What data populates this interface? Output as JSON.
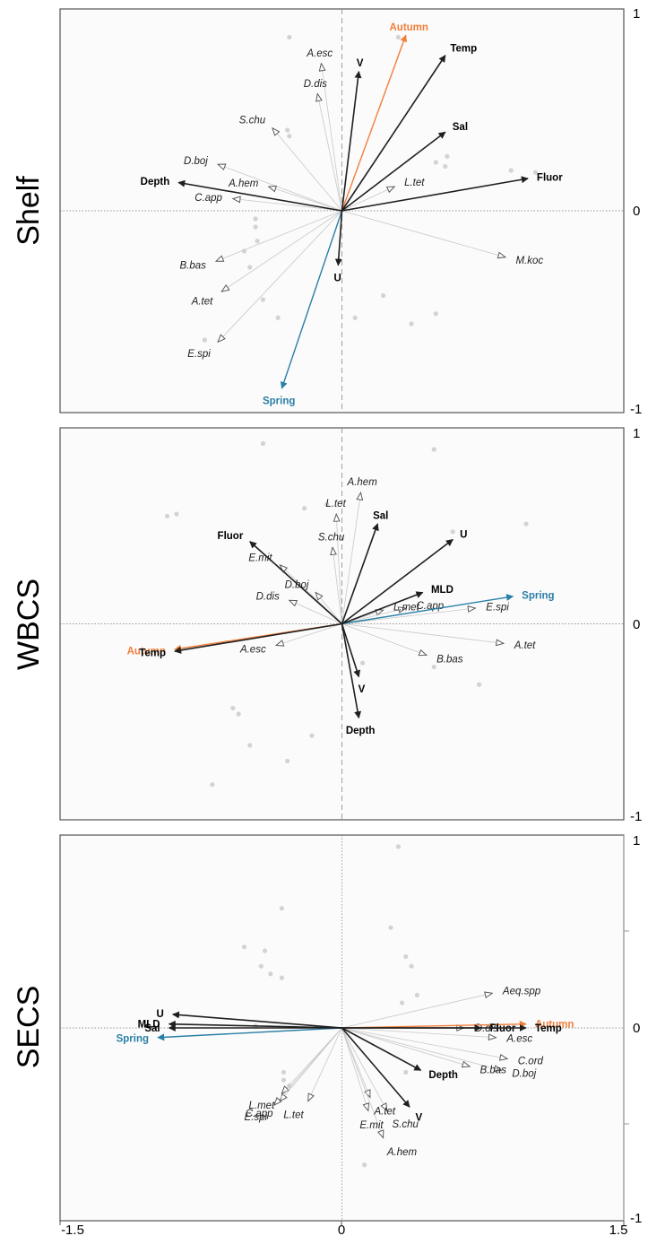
{
  "x_ticks": [
    "-1.5",
    "0",
    "1.5"
  ],
  "chart_data": [
    {
      "type": "scatter",
      "title": "Shelf",
      "xlim": [
        -1.5,
        1.5
      ],
      "ylim": [
        -1,
        1
      ],
      "y_ticks": [
        "1",
        "0",
        "-1"
      ],
      "x_ticks": [
        "-1.5",
        "0",
        "1.5"
      ],
      "grid": false,
      "zero_line_x": "dashed",
      "zero_line_y": "dotted",
      "env_vectors": [
        {
          "label": "V",
          "x": 0.09,
          "y": 0.69
        },
        {
          "label": "Temp",
          "x": 0.55,
          "y": 0.77
        },
        {
          "label": "Sal",
          "x": 0.55,
          "y": 0.39
        },
        {
          "label": "Fluor",
          "x": 0.99,
          "y": 0.16
        },
        {
          "label": "Depth",
          "x": -0.87,
          "y": 0.14
        },
        {
          "label": "U",
          "x": -0.02,
          "y": -0.27
        }
      ],
      "season_vectors": [
        {
          "label": "Autumn",
          "x": 0.34,
          "y": 0.87,
          "color": "#f07f3c"
        },
        {
          "label": "Spring",
          "x": -0.32,
          "y": -0.88,
          "color": "#2a7fa6"
        }
      ],
      "species": [
        {
          "label": "A.esc",
          "x": -0.11,
          "y": 0.73
        },
        {
          "label": "D.dis",
          "x": -0.13,
          "y": 0.58
        },
        {
          "label": "S.chu",
          "x": -0.37,
          "y": 0.41
        },
        {
          "label": "D.boj",
          "x": -0.66,
          "y": 0.23
        },
        {
          "label": "A.hem",
          "x": -0.39,
          "y": 0.12
        },
        {
          "label": "C.app",
          "x": -0.58,
          "y": 0.06
        },
        {
          "label": "L.tet",
          "x": 0.28,
          "y": 0.12
        },
        {
          "label": "M.koc",
          "x": 0.87,
          "y": -0.23
        },
        {
          "label": "B.bas",
          "x": -0.67,
          "y": -0.25
        },
        {
          "label": "A.tet",
          "x": -0.64,
          "y": -0.4
        },
        {
          "label": "E.spi",
          "x": -0.66,
          "y": -0.65
        }
      ],
      "sites": [
        [
          -0.28,
          0.86
        ],
        [
          0.3,
          0.86
        ],
        [
          -0.29,
          0.4
        ],
        [
          -0.28,
          0.37
        ],
        [
          0.56,
          0.27
        ],
        [
          0.5,
          0.24
        ],
        [
          0.55,
          0.22
        ],
        [
          0.9,
          0.2
        ],
        [
          1.03,
          0.19
        ],
        [
          -0.46,
          -0.04
        ],
        [
          -0.46,
          -0.08
        ],
        [
          -0.45,
          -0.15
        ],
        [
          -0.52,
          -0.2
        ],
        [
          -0.49,
          -0.28
        ],
        [
          -0.42,
          -0.44
        ],
        [
          0.22,
          -0.42
        ],
        [
          -0.34,
          -0.53
        ],
        [
          0.07,
          -0.53
        ],
        [
          0.5,
          -0.51
        ],
        [
          0.37,
          -0.56
        ],
        [
          -0.73,
          -0.64
        ]
      ]
    },
    {
      "type": "scatter",
      "title": "WBCS",
      "xlim": [
        -1.5,
        1.5
      ],
      "ylim": [
        -1,
        1
      ],
      "y_ticks": [
        "1",
        "0",
        "-1"
      ],
      "x_ticks": [
        "-1.5",
        "0",
        "1.5"
      ],
      "grid": false,
      "zero_line_x": "dashed",
      "zero_line_y": "dotted",
      "env_vectors": [
        {
          "label": "Fluor",
          "x": -0.49,
          "y": 0.42
        },
        {
          "label": "Sal",
          "x": 0.19,
          "y": 0.51
        },
        {
          "label": "U",
          "x": 0.59,
          "y": 0.43
        },
        {
          "label": "MLD",
          "x": 0.43,
          "y": 0.16
        },
        {
          "label": "Temp",
          "x": -0.89,
          "y": -0.14
        },
        {
          "label": "V",
          "x": 0.09,
          "y": -0.27
        },
        {
          "label": "Depth",
          "x": 0.09,
          "y": -0.48
        }
      ],
      "season_vectors": [
        {
          "label": "Spring",
          "x": 0.91,
          "y": 0.14,
          "color": "#2a7fa6"
        },
        {
          "label": "Autumn",
          "x": -0.89,
          "y": -0.13,
          "color": "#f07f3c"
        }
      ],
      "species": [
        {
          "label": "A.hem",
          "x": 0.1,
          "y": 0.67
        },
        {
          "label": "L.tet",
          "x": -0.03,
          "y": 0.56
        },
        {
          "label": "S.chu",
          "x": -0.05,
          "y": 0.39
        },
        {
          "label": "E.mit",
          "x": -0.33,
          "y": 0.3
        },
        {
          "label": "D.dis",
          "x": -0.28,
          "y": 0.12
        },
        {
          "label": "D.boj",
          "x": -0.14,
          "y": 0.16
        },
        {
          "label": "L.met",
          "x": 0.22,
          "y": 0.07
        },
        {
          "label": "C.app",
          "x": 0.34,
          "y": 0.08
        },
        {
          "label": "E.spi",
          "x": 0.71,
          "y": 0.08
        },
        {
          "label": "A.esc",
          "x": -0.35,
          "y": -0.11
        },
        {
          "label": "B.bas",
          "x": 0.45,
          "y": -0.16
        },
        {
          "label": "A.tet",
          "x": 0.86,
          "y": -0.1
        }
      ],
      "sites": [
        [
          -0.42,
          0.92
        ],
        [
          0.49,
          0.89
        ],
        [
          -0.93,
          0.55
        ],
        [
          -0.88,
          0.56
        ],
        [
          -0.2,
          0.59
        ],
        [
          -0.08,
          0.61
        ],
        [
          0.59,
          0.47
        ],
        [
          0.98,
          0.51
        ],
        [
          0.11,
          -0.2
        ],
        [
          0.49,
          -0.22
        ],
        [
          0.73,
          -0.31
        ],
        [
          -0.58,
          -0.43
        ],
        [
          -0.55,
          -0.46
        ],
        [
          -0.16,
          -0.57
        ],
        [
          -0.49,
          -0.62
        ],
        [
          -0.29,
          -0.7
        ],
        [
          -0.69,
          -0.82
        ]
      ]
    },
    {
      "type": "scatter",
      "title": "SECS",
      "xlim": [
        -1.5,
        1.5
      ],
      "ylim": [
        -1,
        1
      ],
      "y_ticks": [
        "1",
        "0",
        "-1"
      ],
      "x_ticks": [
        "-1.5",
        "0",
        "1.5"
      ],
      "grid": false,
      "zero_line_x": "dotted",
      "zero_line_y": "dotted",
      "env_vectors": [
        {
          "label": "U",
          "x": -0.9,
          "y": 0.07
        },
        {
          "label": "MLD",
          "x": -0.92,
          "y": 0.02
        },
        {
          "label": "Sal",
          "x": -0.92,
          "y": 0.0
        },
        {
          "label": "Fluor",
          "x": 0.74,
          "y": 0.0
        },
        {
          "label": "Temp",
          "x": 0.98,
          "y": 0.0
        },
        {
          "label": "Depth",
          "x": 0.42,
          "y": -0.22
        },
        {
          "label": "V",
          "x": 0.36,
          "y": -0.41
        }
      ],
      "season_vectors": [
        {
          "label": "Autumn",
          "x": 0.98,
          "y": 0.02,
          "color": "#f07f3c"
        },
        {
          "label": "Spring",
          "x": -0.98,
          "y": -0.05,
          "color": "#2a7fa6"
        }
      ],
      "species": [
        {
          "label": "Aeq.spp",
          "x": 0.8,
          "y": 0.18
        },
        {
          "label": "D.dis",
          "x": 0.65,
          "y": 0.0
        },
        {
          "label": "A.esc",
          "x": 0.82,
          "y": -0.05
        },
        {
          "label": "C.ord",
          "x": 0.88,
          "y": -0.16
        },
        {
          "label": "B.bas",
          "x": 0.68,
          "y": -0.2
        },
        {
          "label": "D.boj",
          "x": 0.85,
          "y": -0.22
        },
        {
          "label": "L.met",
          "x": -0.32,
          "y": -0.34
        },
        {
          "label": "C.app",
          "x": -0.33,
          "y": -0.38
        },
        {
          "label": "E.spi",
          "x": -0.36,
          "y": -0.4
        },
        {
          "label": "L.tet",
          "x": -0.18,
          "y": -0.38
        },
        {
          "label": "A.tet",
          "x": 0.15,
          "y": -0.36
        },
        {
          "label": "E.mit",
          "x": 0.14,
          "y": -0.43
        },
        {
          "label": "S.chu",
          "x": 0.24,
          "y": -0.43
        },
        {
          "label": "A.hem",
          "x": 0.22,
          "y": -0.57
        }
      ],
      "sites": [
        [
          0.3,
          0.94
        ],
        [
          -0.32,
          0.62
        ],
        [
          0.26,
          0.52
        ],
        [
          -0.52,
          0.42
        ],
        [
          -0.41,
          0.4
        ],
        [
          -0.43,
          0.32
        ],
        [
          -0.38,
          0.28
        ],
        [
          -0.32,
          0.26
        ],
        [
          0.34,
          0.37
        ],
        [
          0.37,
          0.32
        ],
        [
          0.4,
          0.17
        ],
        [
          0.32,
          0.13
        ],
        [
          -0.46,
          0.01
        ],
        [
          -0.31,
          -0.23
        ],
        [
          -0.31,
          -0.27
        ],
        [
          -0.28,
          -0.3
        ],
        [
          0.34,
          -0.23
        ],
        [
          0.12,
          -0.71
        ]
      ]
    }
  ]
}
